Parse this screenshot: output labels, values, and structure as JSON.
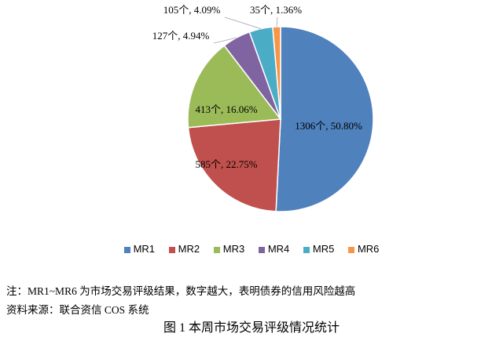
{
  "chart_data": {
    "type": "pie",
    "categories": [
      "MR1",
      "MR2",
      "MR3",
      "MR4",
      "MR5",
      "MR6"
    ],
    "values": [
      1306,
      585,
      413,
      127,
      105,
      35
    ],
    "percents": [
      "50.80%",
      "22.75%",
      "16.06%",
      "4.94%",
      "4.09%",
      "1.36%"
    ],
    "labels": [
      "1306个, 50.80%",
      "585个, 22.75%",
      "413个, 16.06%",
      "127个, 4.94%",
      "105个, 4.09%",
      "35个, 1.36%"
    ],
    "colors": [
      "#4F81BD",
      "#C0504D",
      "#9BBB59",
      "#8064A2",
      "#4BACC6",
      "#F79646"
    ],
    "legend_position": "bottom"
  },
  "notes": {
    "line1": "注：MR1~MR6 为市场交易评级结果，数字越大，表明债券的信用风险越高",
    "line2": "资料来源：联合资信 COS 系统"
  },
  "caption": "图 1  本周市场交易评级情况统计"
}
